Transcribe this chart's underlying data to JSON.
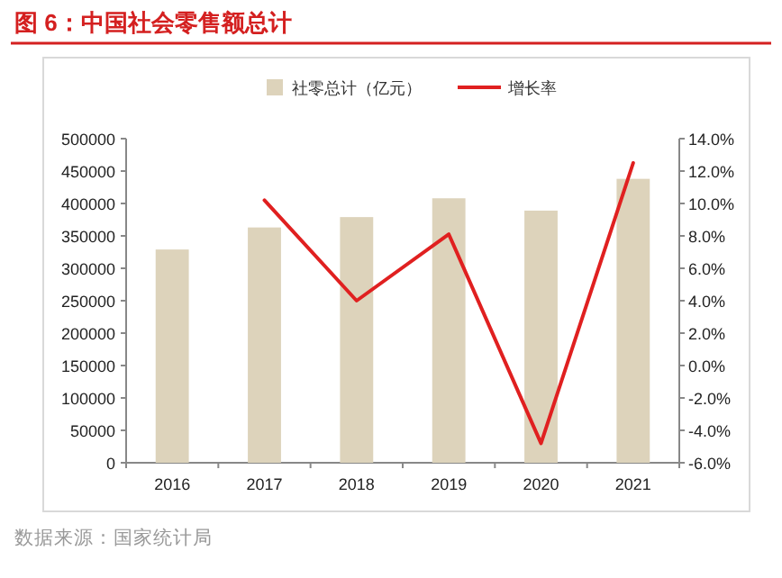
{
  "chart_data": {
    "type": "bar",
    "title": "图 6：中国社会零售额总计",
    "annotations": [
      "数据来源：国家统计局"
    ],
    "categories": [
      "2016",
      "2017",
      "2018",
      "2019",
      "2020",
      "2021"
    ],
    "series": [
      {
        "name": "社零总计（亿元）",
        "color": "#ddd3bb",
        "values": [
          329000,
          363000,
          379000,
          408000,
          389000,
          438000
        ]
      },
      {
        "name": "增长率",
        "type": "line",
        "axis": "y2",
        "color": "#e02020",
        "values": [
          null,
          10.2,
          4.0,
          8.1,
          -4.8,
          12.5
        ]
      }
    ],
    "ylim": [
      0,
      500000
    ],
    "yticks": [
      0,
      50000,
      100000,
      150000,
      200000,
      250000,
      300000,
      350000,
      400000,
      450000,
      500000
    ],
    "y2lim": [
      -6,
      14
    ],
    "y2ticks": [
      {
        "value": -6,
        "label": "-6.0%"
      },
      {
        "value": -4,
        "label": "-4.0%"
      },
      {
        "value": -2,
        "label": "-2.0%"
      },
      {
        "value": 0,
        "label": "0.0%"
      },
      {
        "value": 2,
        "label": "2.0%"
      },
      {
        "value": 4,
        "label": "4.0%"
      },
      {
        "value": 6,
        "label": "6.0%"
      },
      {
        "value": 8,
        "label": "8.0%"
      },
      {
        "value": 10,
        "label": "10.0%"
      },
      {
        "value": 12,
        "label": "12.0%"
      },
      {
        "value": 14,
        "label": "14.0%"
      }
    ],
    "legend": "top",
    "marker": "none"
  }
}
